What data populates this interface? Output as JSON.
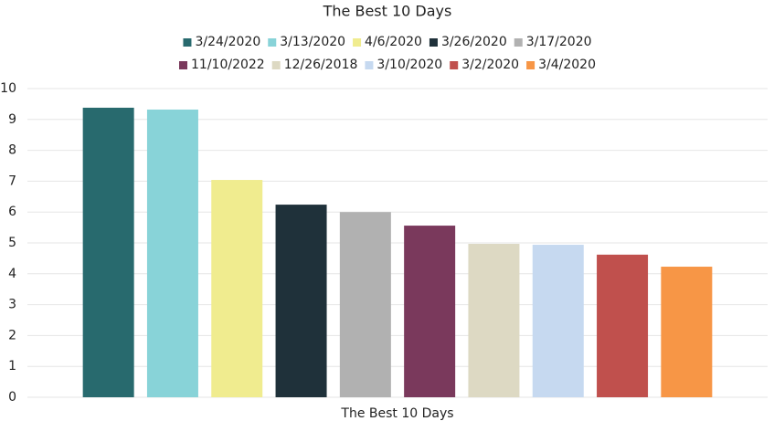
{
  "chart_data": {
    "type": "bar",
    "title": "The Best 10 Days",
    "categories": [
      "The Best 10 Days"
    ],
    "series": [
      {
        "name": "3/24/2020",
        "color": "#286a6e",
        "values": [
          9.38
        ]
      },
      {
        "name": "3/13/2020",
        "color": "#88d3d8",
        "values": [
          9.32
        ]
      },
      {
        "name": "4/6/2020",
        "color": "#f0ec8f",
        "values": [
          7.04
        ]
      },
      {
        "name": "3/26/2020",
        "color": "#1f313a",
        "values": [
          6.24
        ]
      },
      {
        "name": "3/17/2020",
        "color": "#b1b1b1",
        "values": [
          6.0
        ]
      },
      {
        "name": "11/10/2022",
        "color": "#7a395c",
        "values": [
          5.56
        ]
      },
      {
        "name": "12/26/2018",
        "color": "#ddd9c3",
        "values": [
          4.97
        ]
      },
      {
        "name": "3/10/2020",
        "color": "#c6d9f0",
        "values": [
          4.94
        ]
      },
      {
        "name": "3/2/2020",
        "color": "#c0504d",
        "values": [
          4.62
        ]
      },
      {
        "name": "3/4/2020",
        "color": "#f79646",
        "values": [
          4.23
        ]
      }
    ],
    "ylim": [
      0,
      10
    ],
    "yticks": [
      0,
      1,
      2,
      3,
      4,
      5,
      6,
      7,
      8,
      9,
      10
    ],
    "grid": true,
    "legend": "top"
  }
}
